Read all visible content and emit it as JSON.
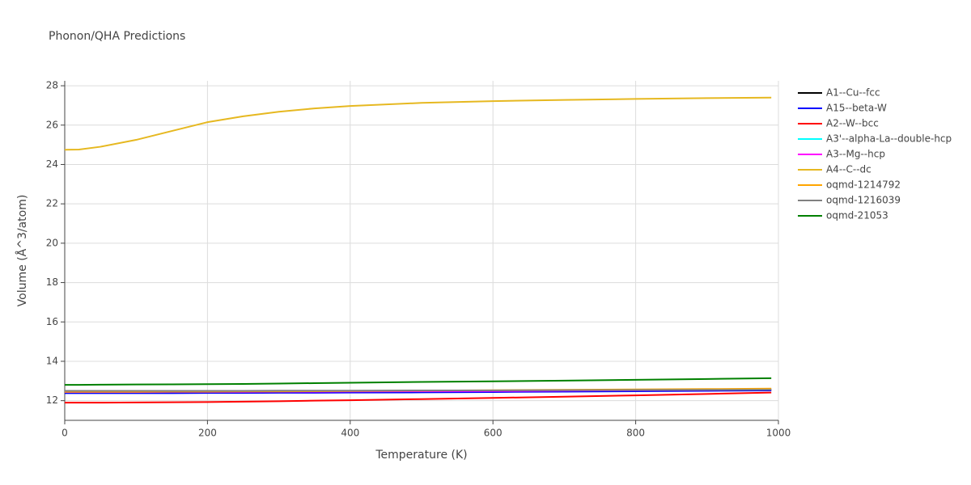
{
  "chart_data": {
    "type": "line",
    "title": "Phonon/QHA Predictions",
    "x_label": "Temperature (K)",
    "y_label": "Volume (Å^3/atom)",
    "x": [
      0,
      20,
      50,
      100,
      150,
      200,
      250,
      300,
      350,
      400,
      500,
      600,
      700,
      800,
      900,
      990
    ],
    "series": [
      {
        "name": "A1--Cu--fcc",
        "color": "#000000",
        "values": [
          12.4,
          12.4,
          12.4,
          12.4,
          12.41,
          12.41,
          12.42,
          12.42,
          12.43,
          12.43,
          12.45,
          12.46,
          12.48,
          12.5,
          12.52,
          12.54
        ]
      },
      {
        "name": "A15--beta-W",
        "color": "#0000ff",
        "values": [
          12.38,
          12.38,
          12.38,
          12.38,
          12.38,
          12.39,
          12.39,
          12.4,
          12.4,
          12.41,
          12.42,
          12.44,
          12.46,
          12.48,
          12.5,
          12.52
        ]
      },
      {
        "name": "A2--W--bcc",
        "color": "#ff0000",
        "values": [
          11.9,
          11.9,
          11.9,
          11.91,
          11.92,
          11.93,
          11.95,
          11.97,
          12.0,
          12.02,
          12.08,
          12.14,
          12.2,
          12.27,
          12.34,
          12.41
        ]
      },
      {
        "name": "A3'--alpha-La--double-hcp",
        "color": "#00ffff",
        "values": [
          12.46,
          12.46,
          12.46,
          12.46,
          12.46,
          12.47,
          12.47,
          12.48,
          12.48,
          12.49,
          12.5,
          12.51,
          12.53,
          12.55,
          12.57,
          12.59
        ]
      },
      {
        "name": "A3--Mg--hcp",
        "color": "#ff00ff",
        "values": [
          12.44,
          12.44,
          12.44,
          12.44,
          12.45,
          12.45,
          12.45,
          12.46,
          12.46,
          12.47,
          12.48,
          12.49,
          12.51,
          12.53,
          12.55,
          12.57
        ]
      },
      {
        "name": "A4--C--dc",
        "color": "#e6b820",
        "values": [
          24.75,
          24.76,
          24.9,
          25.25,
          25.7,
          26.15,
          26.45,
          26.68,
          26.85,
          26.97,
          27.13,
          27.22,
          27.28,
          27.33,
          27.37,
          27.4
        ]
      },
      {
        "name": "oqmd-1214792",
        "color": "#ffa500",
        "values": [
          12.45,
          12.45,
          12.45,
          12.45,
          12.46,
          12.46,
          12.47,
          12.47,
          12.48,
          12.49,
          12.51,
          12.53,
          12.55,
          12.57,
          12.59,
          12.61
        ]
      },
      {
        "name": "oqmd-1216039",
        "color": "#808080",
        "values": [
          12.5,
          12.5,
          12.5,
          12.5,
          12.5,
          12.5,
          12.5,
          12.51,
          12.51,
          12.51,
          12.52,
          12.52,
          12.53,
          12.54,
          12.55,
          12.56
        ]
      },
      {
        "name": "oqmd-21053",
        "color": "#008000",
        "values": [
          12.8,
          12.8,
          12.81,
          12.82,
          12.83,
          12.84,
          12.85,
          12.87,
          12.89,
          12.91,
          12.95,
          12.98,
          13.02,
          13.06,
          13.1,
          13.14
        ]
      }
    ],
    "xlim": [
      0,
      1000
    ],
    "xticks": [
      0,
      200,
      400,
      600,
      800,
      1000
    ],
    "ylim": [
      11.0,
      28.25
    ],
    "yticks": [
      12,
      14,
      16,
      18,
      20,
      22,
      24,
      26,
      28
    ],
    "grid": true,
    "legend": "right"
  }
}
